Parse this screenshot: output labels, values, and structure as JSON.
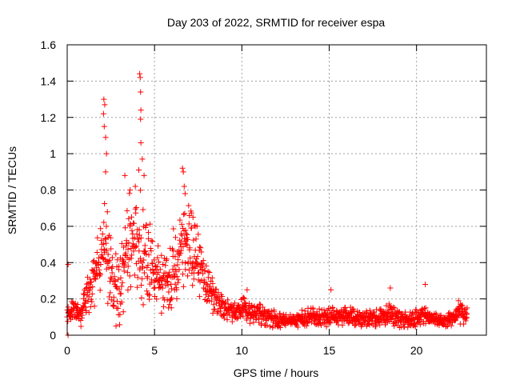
{
  "chart_data": {
    "type": "scatter",
    "title": "Day 203 of 2022, SRMTID for receiver espa",
    "xlabel": "GPS time / hours",
    "ylabel": "SRMTID / TECUs",
    "xlim": [
      0,
      24
    ],
    "ylim": [
      0,
      1.6
    ],
    "xticks": [
      0,
      5,
      10,
      15,
      20
    ],
    "xtick_labels": [
      "0",
      "5",
      "10",
      "15",
      "20"
    ],
    "yticks": [
      0,
      0.2,
      0.4,
      0.6,
      0.8,
      1,
      1.2,
      1.4,
      1.6
    ],
    "ytick_labels": [
      "0",
      "0.2",
      "0.4",
      "0.6",
      "0.8",
      "1",
      "1.2",
      "1.4",
      "1.6"
    ],
    "grid": true,
    "marker": "+",
    "series": [
      {
        "name": "SRMTID",
        "color": "#ff0000",
        "envelope": {
          "hours": [
            0,
            0.2,
            0.5,
            0.8,
            1.0,
            1.3,
            1.5,
            1.8,
            2.0,
            2.2,
            2.5,
            2.8,
            3.0,
            3.3,
            3.6,
            3.9,
            4.2,
            4.5,
            4.8,
            5.0,
            5.3,
            5.6,
            5.9,
            6.2,
            6.5,
            6.8,
            7.1,
            7.4,
            7.7,
            8.0,
            8.3,
            8.6,
            9.0,
            9.5,
            10.0,
            10.5,
            11.0,
            11.5,
            12.0,
            12.5,
            13.0,
            13.5,
            14.0,
            14.5,
            15.0,
            15.5,
            16.0,
            16.5,
            17.0,
            17.5,
            18.0,
            18.5,
            19.0,
            19.5,
            20.0,
            20.5,
            21.0,
            21.5,
            22.0,
            22.5,
            22.9
          ],
          "center": [
            0.12,
            0.13,
            0.14,
            0.11,
            0.18,
            0.27,
            0.32,
            0.38,
            0.45,
            0.5,
            0.32,
            0.25,
            0.22,
            0.4,
            0.52,
            0.55,
            0.5,
            0.45,
            0.38,
            0.33,
            0.3,
            0.28,
            0.32,
            0.4,
            0.5,
            0.52,
            0.5,
            0.42,
            0.35,
            0.28,
            0.22,
            0.18,
            0.15,
            0.13,
            0.14,
            0.12,
            0.11,
            0.1,
            0.09,
            0.08,
            0.08,
            0.09,
            0.1,
            0.1,
            0.11,
            0.1,
            0.11,
            0.1,
            0.09,
            0.09,
            0.1,
            0.12,
            0.09,
            0.09,
            0.1,
            0.12,
            0.08,
            0.08,
            0.09,
            0.12,
            0.1
          ],
          "spread": [
            0.04,
            0.04,
            0.05,
            0.05,
            0.08,
            0.1,
            0.12,
            0.15,
            0.18,
            0.2,
            0.18,
            0.16,
            0.15,
            0.2,
            0.22,
            0.25,
            0.24,
            0.22,
            0.18,
            0.15,
            0.14,
            0.13,
            0.15,
            0.18,
            0.2,
            0.18,
            0.18,
            0.16,
            0.14,
            0.11,
            0.08,
            0.07,
            0.05,
            0.05,
            0.06,
            0.05,
            0.05,
            0.04,
            0.04,
            0.03,
            0.03,
            0.04,
            0.04,
            0.04,
            0.05,
            0.04,
            0.04,
            0.04,
            0.04,
            0.04,
            0.04,
            0.05,
            0.04,
            0.04,
            0.04,
            0.05,
            0.03,
            0.03,
            0.04,
            0.05,
            0.04
          ]
        },
        "peaks": [
          {
            "x": 0.05,
            "y": 0.39
          },
          {
            "x": 0.05,
            "y": 0.0
          },
          {
            "x": 2.1,
            "y": 1.3
          },
          {
            "x": 2.15,
            "y": 1.27
          },
          {
            "x": 2.08,
            "y": 1.22
          },
          {
            "x": 2.12,
            "y": 1.15
          },
          {
            "x": 2.2,
            "y": 1.09
          },
          {
            "x": 2.25,
            "y": 1.0
          },
          {
            "x": 2.2,
            "y": 0.9
          },
          {
            "x": 2.3,
            "y": 0.68
          },
          {
            "x": 3.3,
            "y": 0.88
          },
          {
            "x": 3.6,
            "y": 0.8
          },
          {
            "x": 3.9,
            "y": 0.82
          },
          {
            "x": 4.15,
            "y": 1.44
          },
          {
            "x": 4.18,
            "y": 1.42
          },
          {
            "x": 4.2,
            "y": 1.34
          },
          {
            "x": 4.22,
            "y": 1.24
          },
          {
            "x": 4.2,
            "y": 1.19
          },
          {
            "x": 4.22,
            "y": 1.06
          },
          {
            "x": 4.3,
            "y": 0.97
          },
          {
            "x": 4.1,
            "y": 0.91
          },
          {
            "x": 4.4,
            "y": 0.88
          },
          {
            "x": 6.6,
            "y": 0.92
          },
          {
            "x": 6.65,
            "y": 0.9
          },
          {
            "x": 6.7,
            "y": 0.82
          },
          {
            "x": 6.75,
            "y": 0.78
          },
          {
            "x": 7.2,
            "y": 0.65
          },
          {
            "x": 10.3,
            "y": 0.25
          },
          {
            "x": 15.1,
            "y": 0.25
          },
          {
            "x": 18.5,
            "y": 0.26
          },
          {
            "x": 20.5,
            "y": 0.28
          },
          {
            "x": 22.4,
            "y": 0.19
          }
        ]
      }
    ]
  }
}
